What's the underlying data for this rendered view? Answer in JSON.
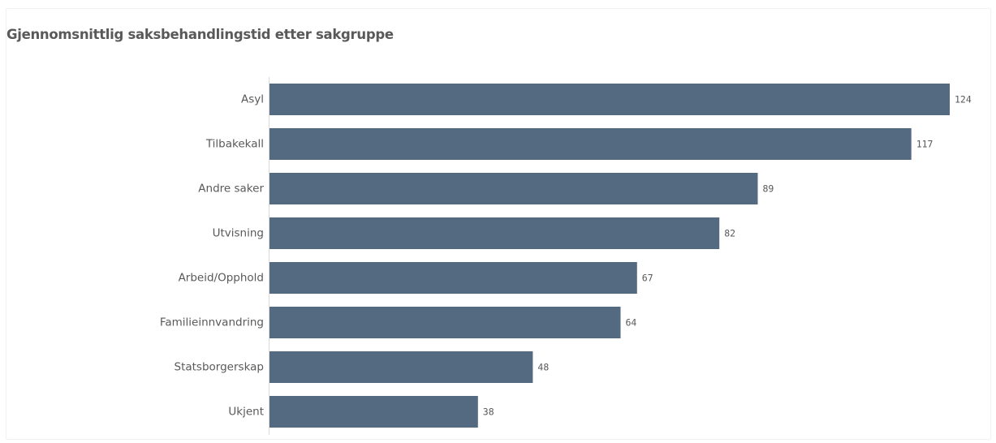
{
  "chart_data": {
    "type": "bar",
    "orientation": "horizontal",
    "title": "Gjennomsnittlig saksbehandlingstid etter sakgruppe",
    "categories": [
      "Asyl",
      "Tilbakekall",
      "Andre saker",
      "Utvisning",
      "Arbeid/Opphold",
      "Familieinnvandring",
      "Statsborgerskap",
      "Ukjent"
    ],
    "values": [
      124,
      117,
      89,
      82,
      67,
      64,
      48,
      38
    ],
    "xlabel": "",
    "ylabel": "",
    "xlim": [
      0,
      124
    ],
    "grid": false,
    "legend": "none",
    "bar_color": "#546a80",
    "axis_color": "#d9d9d9",
    "text_color": "#595959"
  }
}
